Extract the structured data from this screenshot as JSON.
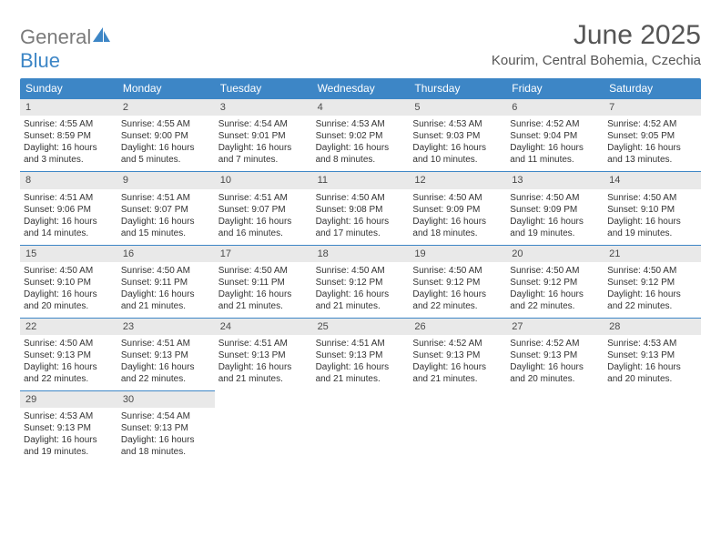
{
  "brand": {
    "text1": "General",
    "text2": "Blue"
  },
  "title": "June 2025",
  "location": "Kourim, Central Bohemia, Czechia",
  "header_bg": "#3d86c6",
  "daynum_bg": "#e9e9e9",
  "daynames": [
    "Sunday",
    "Monday",
    "Tuesday",
    "Wednesday",
    "Thursday",
    "Friday",
    "Saturday"
  ],
  "days": [
    {
      "n": "1",
      "sr": "Sunrise: 4:55 AM",
      "ss": "Sunset: 8:59 PM",
      "d1": "Daylight: 16 hours",
      "d2": "and 3 minutes."
    },
    {
      "n": "2",
      "sr": "Sunrise: 4:55 AM",
      "ss": "Sunset: 9:00 PM",
      "d1": "Daylight: 16 hours",
      "d2": "and 5 minutes."
    },
    {
      "n": "3",
      "sr": "Sunrise: 4:54 AM",
      "ss": "Sunset: 9:01 PM",
      "d1": "Daylight: 16 hours",
      "d2": "and 7 minutes."
    },
    {
      "n": "4",
      "sr": "Sunrise: 4:53 AM",
      "ss": "Sunset: 9:02 PM",
      "d1": "Daylight: 16 hours",
      "d2": "and 8 minutes."
    },
    {
      "n": "5",
      "sr": "Sunrise: 4:53 AM",
      "ss": "Sunset: 9:03 PM",
      "d1": "Daylight: 16 hours",
      "d2": "and 10 minutes."
    },
    {
      "n": "6",
      "sr": "Sunrise: 4:52 AM",
      "ss": "Sunset: 9:04 PM",
      "d1": "Daylight: 16 hours",
      "d2": "and 11 minutes."
    },
    {
      "n": "7",
      "sr": "Sunrise: 4:52 AM",
      "ss": "Sunset: 9:05 PM",
      "d1": "Daylight: 16 hours",
      "d2": "and 13 minutes."
    },
    {
      "n": "8",
      "sr": "Sunrise: 4:51 AM",
      "ss": "Sunset: 9:06 PM",
      "d1": "Daylight: 16 hours",
      "d2": "and 14 minutes."
    },
    {
      "n": "9",
      "sr": "Sunrise: 4:51 AM",
      "ss": "Sunset: 9:07 PM",
      "d1": "Daylight: 16 hours",
      "d2": "and 15 minutes."
    },
    {
      "n": "10",
      "sr": "Sunrise: 4:51 AM",
      "ss": "Sunset: 9:07 PM",
      "d1": "Daylight: 16 hours",
      "d2": "and 16 minutes."
    },
    {
      "n": "11",
      "sr": "Sunrise: 4:50 AM",
      "ss": "Sunset: 9:08 PM",
      "d1": "Daylight: 16 hours",
      "d2": "and 17 minutes."
    },
    {
      "n": "12",
      "sr": "Sunrise: 4:50 AM",
      "ss": "Sunset: 9:09 PM",
      "d1": "Daylight: 16 hours",
      "d2": "and 18 minutes."
    },
    {
      "n": "13",
      "sr": "Sunrise: 4:50 AM",
      "ss": "Sunset: 9:09 PM",
      "d1": "Daylight: 16 hours",
      "d2": "and 19 minutes."
    },
    {
      "n": "14",
      "sr": "Sunrise: 4:50 AM",
      "ss": "Sunset: 9:10 PM",
      "d1": "Daylight: 16 hours",
      "d2": "and 19 minutes."
    },
    {
      "n": "15",
      "sr": "Sunrise: 4:50 AM",
      "ss": "Sunset: 9:10 PM",
      "d1": "Daylight: 16 hours",
      "d2": "and 20 minutes."
    },
    {
      "n": "16",
      "sr": "Sunrise: 4:50 AM",
      "ss": "Sunset: 9:11 PM",
      "d1": "Daylight: 16 hours",
      "d2": "and 21 minutes."
    },
    {
      "n": "17",
      "sr": "Sunrise: 4:50 AM",
      "ss": "Sunset: 9:11 PM",
      "d1": "Daylight: 16 hours",
      "d2": "and 21 minutes."
    },
    {
      "n": "18",
      "sr": "Sunrise: 4:50 AM",
      "ss": "Sunset: 9:12 PM",
      "d1": "Daylight: 16 hours",
      "d2": "and 21 minutes."
    },
    {
      "n": "19",
      "sr": "Sunrise: 4:50 AM",
      "ss": "Sunset: 9:12 PM",
      "d1": "Daylight: 16 hours",
      "d2": "and 22 minutes."
    },
    {
      "n": "20",
      "sr": "Sunrise: 4:50 AM",
      "ss": "Sunset: 9:12 PM",
      "d1": "Daylight: 16 hours",
      "d2": "and 22 minutes."
    },
    {
      "n": "21",
      "sr": "Sunrise: 4:50 AM",
      "ss": "Sunset: 9:12 PM",
      "d1": "Daylight: 16 hours",
      "d2": "and 22 minutes."
    },
    {
      "n": "22",
      "sr": "Sunrise: 4:50 AM",
      "ss": "Sunset: 9:13 PM",
      "d1": "Daylight: 16 hours",
      "d2": "and 22 minutes."
    },
    {
      "n": "23",
      "sr": "Sunrise: 4:51 AM",
      "ss": "Sunset: 9:13 PM",
      "d1": "Daylight: 16 hours",
      "d2": "and 22 minutes."
    },
    {
      "n": "24",
      "sr": "Sunrise: 4:51 AM",
      "ss": "Sunset: 9:13 PM",
      "d1": "Daylight: 16 hours",
      "d2": "and 21 minutes."
    },
    {
      "n": "25",
      "sr": "Sunrise: 4:51 AM",
      "ss": "Sunset: 9:13 PM",
      "d1": "Daylight: 16 hours",
      "d2": "and 21 minutes."
    },
    {
      "n": "26",
      "sr": "Sunrise: 4:52 AM",
      "ss": "Sunset: 9:13 PM",
      "d1": "Daylight: 16 hours",
      "d2": "and 21 minutes."
    },
    {
      "n": "27",
      "sr": "Sunrise: 4:52 AM",
      "ss": "Sunset: 9:13 PM",
      "d1": "Daylight: 16 hours",
      "d2": "and 20 minutes."
    },
    {
      "n": "28",
      "sr": "Sunrise: 4:53 AM",
      "ss": "Sunset: 9:13 PM",
      "d1": "Daylight: 16 hours",
      "d2": "and 20 minutes."
    },
    {
      "n": "29",
      "sr": "Sunrise: 4:53 AM",
      "ss": "Sunset: 9:13 PM",
      "d1": "Daylight: 16 hours",
      "d2": "and 19 minutes."
    },
    {
      "n": "30",
      "sr": "Sunrise: 4:54 AM",
      "ss": "Sunset: 9:13 PM",
      "d1": "Daylight: 16 hours",
      "d2": "and 18 minutes."
    }
  ]
}
